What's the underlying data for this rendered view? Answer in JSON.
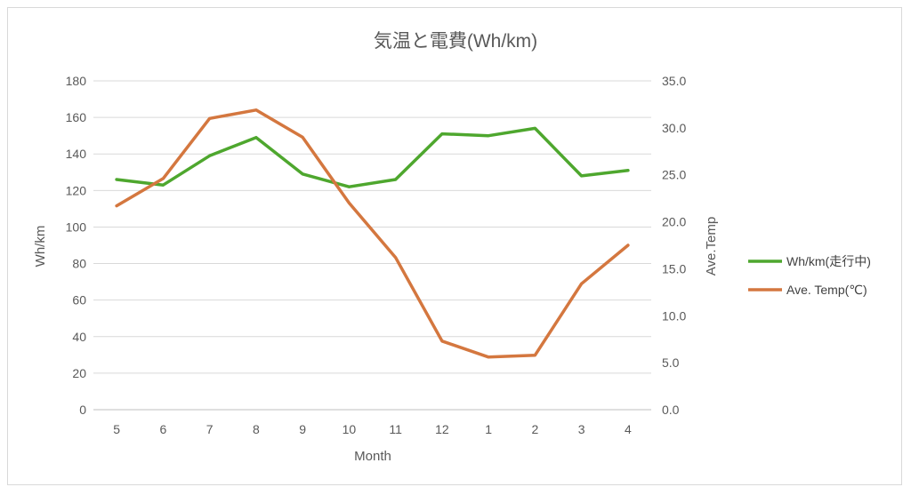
{
  "chart_data": {
    "type": "line",
    "title": "気温と電費(Wh/km)",
    "xlabel": "Month",
    "ylabel": "Wh/km",
    "y2label": "Ave.Temp",
    "categories": [
      "5",
      "6",
      "7",
      "8",
      "9",
      "10",
      "11",
      "12",
      "1",
      "2",
      "3",
      "4"
    ],
    "ylim": [
      0,
      180
    ],
    "y_ticks": [
      "0",
      "20",
      "40",
      "60",
      "80",
      "100",
      "120",
      "140",
      "160",
      "180"
    ],
    "y2lim": [
      0,
      35
    ],
    "y2_ticks": [
      "0.0",
      "5.0",
      "10.0",
      "15.0",
      "20.0",
      "25.0",
      "30.0",
      "35.0"
    ],
    "grid": true,
    "legend_position": "right",
    "series": [
      {
        "name": "Wh/km(走行中)",
        "axis": "left",
        "color": "#4EA72E",
        "values": [
          126,
          123,
          139,
          149,
          129,
          122,
          126,
          151,
          150,
          154,
          128,
          131
        ]
      },
      {
        "name": "Ave. Temp(℃)",
        "axis": "right",
        "color": "#D4773F",
        "values": [
          21.7,
          24.6,
          31.0,
          31.9,
          29.0,
          22.0,
          16.2,
          7.3,
          5.6,
          5.8,
          13.4,
          17.5
        ]
      }
    ]
  }
}
